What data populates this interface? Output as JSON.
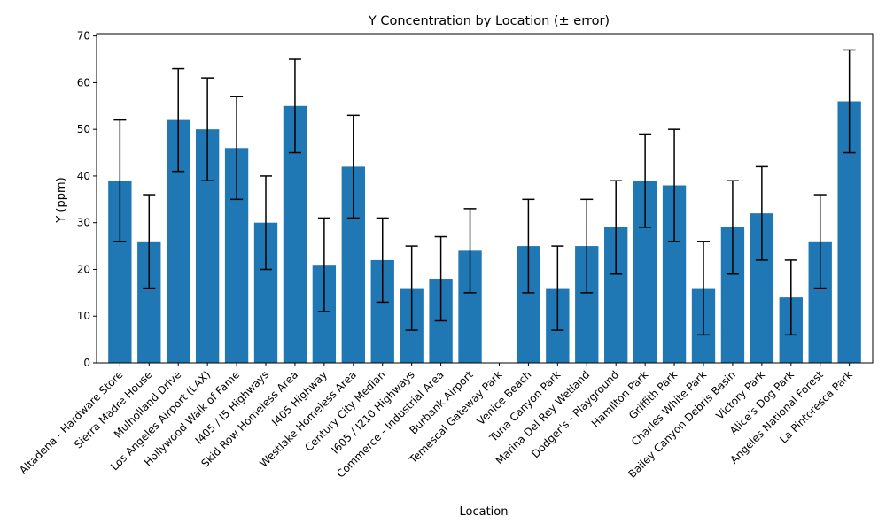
{
  "chart_data": {
    "type": "bar",
    "title": "Y Concentration by Location (± error)",
    "xlabel": "Location",
    "ylabel": "Y (ppm)",
    "ylim": [
      0,
      70.5
    ],
    "yticks": [
      0,
      10,
      20,
      30,
      40,
      50,
      60,
      70
    ],
    "grid": false,
    "legend": "none",
    "bar_color": "#1f77b4",
    "errorbar_color": "#000000",
    "categories": [
      "Altadena - Hardware Store",
      "Sierra Madre House",
      "Mulholland Drive",
      "Los Angeles Airport (LAX)",
      "Hollywood Walk of Fame",
      "I405 / I5 Highways",
      "Skid Row Homeless Area",
      "I405 Highway",
      "Westlake Homeless Area",
      "Century City Median",
      "I605 / I210 Highways",
      "Commerce - Industrial Area",
      "Burbank Airport",
      "Temescal Gateway Park",
      "Venice Beach",
      "Tuna Canyon Park",
      "Marina Del Rey Wetland",
      "Dodger's - Playground",
      "Hamilton Park",
      "Griffith Park",
      "Charles White Park",
      "Bailey Canyon Debris Basin",
      "Victory Park",
      "Alice's Dog Park",
      "Angeles National Forest",
      "La Pintoresca Park"
    ],
    "values": [
      39,
      26,
      52,
      50,
      46,
      30,
      55,
      21,
      42,
      22,
      16,
      18,
      24,
      0,
      25,
      16,
      25,
      29,
      39,
      38,
      16,
      29,
      32,
      14,
      26,
      56
    ],
    "errors": [
      13,
      10,
      11,
      11,
      11,
      10,
      10,
      10,
      11,
      9,
      9,
      9,
      9,
      0,
      10,
      9,
      10,
      10,
      10,
      12,
      10,
      10,
      10,
      8,
      10,
      11
    ]
  }
}
